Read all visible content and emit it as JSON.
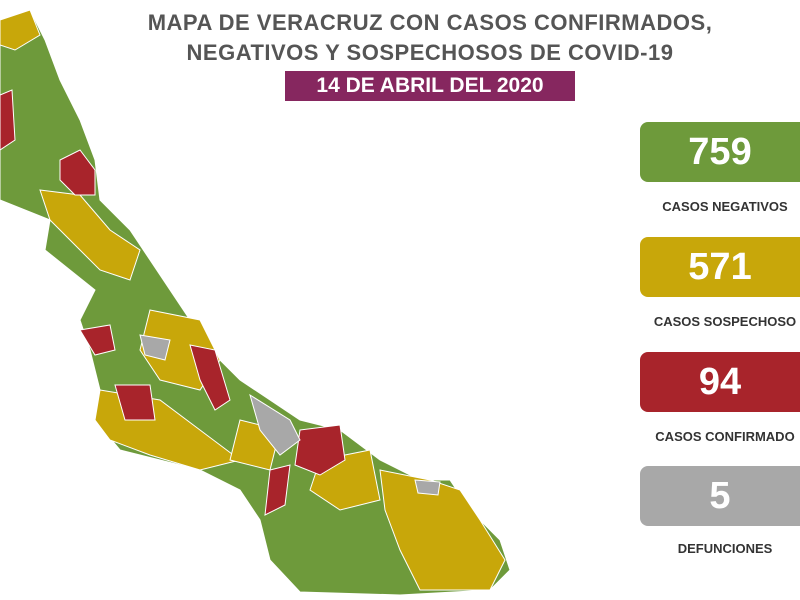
{
  "header": {
    "title_lines": [
      "MAPA DE VERACRUZ CON CASOS CONFIRMADOS,",
      "NEGATIVOS Y SOSPECHOSOS DE COVID-19"
    ],
    "date": "14 DE ABRIL DEL 2020"
  },
  "stats": [
    {
      "value": 759,
      "label": "CASOS NEGATIVOS"
    },
    {
      "value": 571,
      "label": "CASOS SOSPECHOSO"
    },
    {
      "value": 94,
      "label": "CASOS CONFIRMADO"
    },
    {
      "value": 5,
      "label": "DEFUNCIONES"
    }
  ]
}
